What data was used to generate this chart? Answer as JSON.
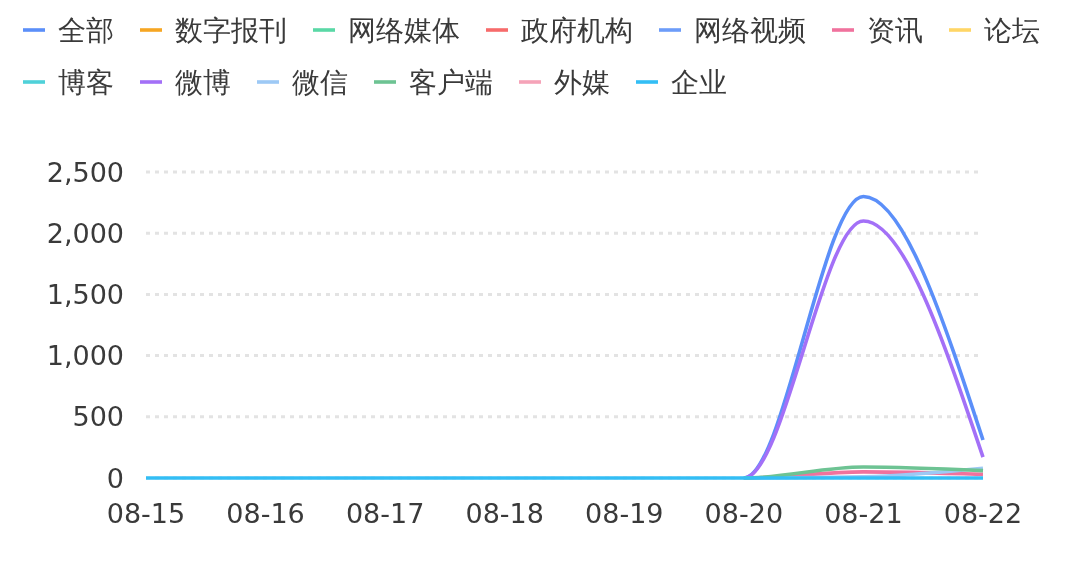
{
  "chart_data": {
    "type": "line",
    "categories": [
      "08-15",
      "08-16",
      "08-17",
      "08-18",
      "08-19",
      "08-20",
      "08-21",
      "08-22"
    ],
    "series": [
      {
        "name": "全部",
        "color": "#5b8ff9",
        "values": [
          null,
          null,
          null,
          null,
          null,
          0,
          2300,
          310
        ]
      },
      {
        "name": "数字报刊",
        "color": "#f6a623",
        "values": [
          null,
          null,
          null,
          null,
          null,
          null,
          null,
          null
        ]
      },
      {
        "name": "网络媒体",
        "color": "#5ad8a6",
        "values": [
          null,
          null,
          null,
          null,
          null,
          null,
          null,
          null
        ]
      },
      {
        "name": "政府机构",
        "color": "#f76b6b",
        "values": [
          null,
          null,
          null,
          null,
          null,
          null,
          null,
          null
        ]
      },
      {
        "name": "网络视频",
        "color": "#6d9cf9",
        "values": [
          null,
          null,
          null,
          null,
          null,
          null,
          null,
          null
        ]
      },
      {
        "name": "资讯",
        "color": "#f0729d",
        "values": [
          null,
          null,
          null,
          null,
          null,
          0,
          50,
          30
        ]
      },
      {
        "name": "论坛",
        "color": "#ffd666",
        "values": [
          null,
          null,
          null,
          null,
          null,
          null,
          null,
          null
        ]
      },
      {
        "name": "博客",
        "color": "#4fd1d9",
        "values": [
          null,
          null,
          null,
          null,
          null,
          null,
          null,
          null
        ]
      },
      {
        "name": "微博",
        "color": "#a370f7",
        "values": [
          null,
          null,
          null,
          null,
          null,
          0,
          2100,
          170
        ]
      },
      {
        "name": "微信",
        "color": "#9dc9f5",
        "values": [
          null,
          null,
          null,
          null,
          null,
          0,
          10,
          80
        ]
      },
      {
        "name": "客户端",
        "color": "#6dc393",
        "values": [
          null,
          null,
          null,
          null,
          null,
          0,
          90,
          60
        ]
      },
      {
        "name": "外媒",
        "color": "#f5a3b8",
        "values": [
          null,
          null,
          null,
          null,
          null,
          null,
          null,
          null
        ]
      },
      {
        "name": "企业",
        "color": "#33bef5",
        "values": [
          0,
          0,
          0,
          0,
          0,
          0,
          0,
          0
        ]
      }
    ],
    "ylim": [
      0,
      2500
    ],
    "yticks": [
      0,
      500,
      {
        "value": 1000,
        "label": "1,000"
      },
      {
        "value": 1500,
        "label": "1,500"
      },
      {
        "value": 2000,
        "label": "2,000"
      },
      {
        "value": 2500,
        "label": "2,500"
      }
    ],
    "grid": "y",
    "legend": "top"
  }
}
